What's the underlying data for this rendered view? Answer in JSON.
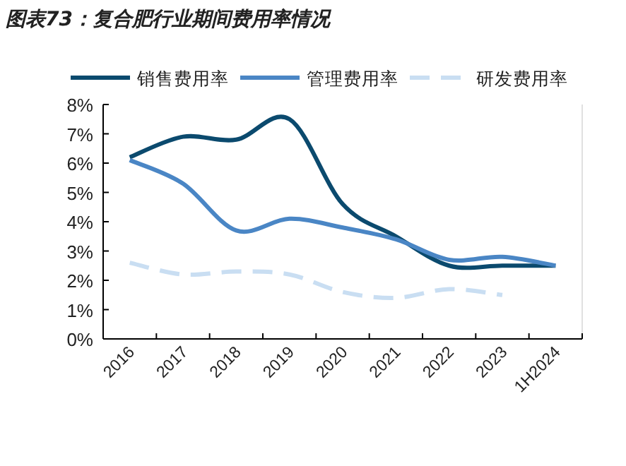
{
  "chart_data": {
    "type": "line",
    "title": "图表73：复合肥行业期间费用率情况",
    "categories": [
      "2016",
      "2017",
      "2018",
      "2019",
      "2020",
      "2021",
      "2022",
      "2023",
      "1H2024"
    ],
    "series": [
      {
        "name": "销售费用率",
        "color": "#0b4a6e",
        "values": [
          6.2,
          6.9,
          6.8,
          7.5,
          4.6,
          3.5,
          2.5,
          2.5,
          2.5
        ]
      },
      {
        "name": "管理费用率",
        "color": "#4a86c5",
        "values": [
          6.1,
          5.3,
          3.7,
          4.1,
          3.8,
          3.4,
          2.7,
          2.8,
          2.5
        ]
      },
      {
        "name": "研发费用率",
        "color": "#c9def2",
        "line_style": "dashed",
        "values": [
          2.6,
          2.2,
          2.3,
          2.2,
          1.6,
          1.4,
          1.7,
          1.5,
          null
        ]
      }
    ],
    "ylim": [
      0,
      8
    ],
    "yticks": [
      {
        "value": 0,
        "label": "0%"
      },
      {
        "value": 1,
        "label": "1%"
      },
      {
        "value": 2,
        "label": "2%"
      },
      {
        "value": 3,
        "label": "3%"
      },
      {
        "value": 4,
        "label": "4%"
      },
      {
        "value": 5,
        "label": "5%"
      },
      {
        "value": 6,
        "label": "6%"
      },
      {
        "value": 7,
        "label": "7%"
      },
      {
        "value": 8,
        "label": "8%"
      }
    ],
    "legend": "top",
    "grid": false,
    "marker": "none"
  }
}
